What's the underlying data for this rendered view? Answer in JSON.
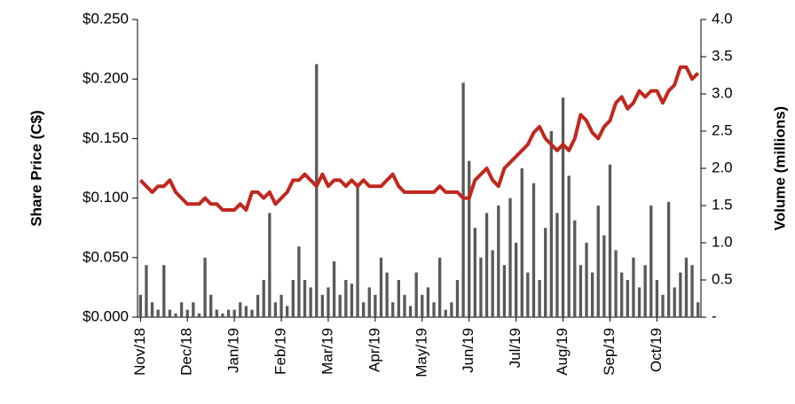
{
  "chart_data": {
    "type": "bar_line",
    "ylabel": "Share Price (C$)",
    "y2label": "Volume (millions)",
    "categories": [
      "Nov/18",
      null,
      null,
      null,
      null,
      null,
      null,
      null,
      "Dec/18",
      null,
      null,
      null,
      null,
      null,
      null,
      null,
      "Jan/19",
      null,
      null,
      null,
      null,
      null,
      null,
      null,
      "Feb/19",
      null,
      null,
      null,
      null,
      null,
      null,
      null,
      "Mar/19",
      null,
      null,
      null,
      null,
      null,
      null,
      null,
      "Apr/19",
      null,
      null,
      null,
      null,
      null,
      null,
      null,
      "May/19",
      null,
      null,
      null,
      null,
      null,
      null,
      null,
      "Jun/19",
      null,
      null,
      null,
      null,
      null,
      null,
      null,
      "Jul/19",
      null,
      null,
      null,
      null,
      null,
      null,
      null,
      "Aug/19",
      null,
      null,
      null,
      null,
      null,
      null,
      null,
      "Sep/19",
      null,
      null,
      null,
      null,
      null,
      null,
      null,
      "Oct/19",
      null,
      null,
      null,
      null,
      null,
      null,
      null
    ],
    "series": [
      {
        "name": "Volume",
        "kind": "bar",
        "axis": "y2",
        "color": "#595959",
        "values": [
          0.3,
          0.7,
          0.2,
          0.1,
          0.7,
          0.1,
          0.05,
          0.2,
          0.1,
          0.2,
          0.05,
          0.8,
          0.3,
          0.1,
          0.05,
          0.1,
          0.1,
          0.2,
          0.15,
          0.1,
          0.3,
          0.5,
          1.4,
          0.2,
          0.3,
          0.15,
          0.5,
          0.95,
          0.5,
          0.4,
          3.4,
          0.3,
          0.4,
          0.75,
          0.3,
          0.5,
          0.45,
          1.8,
          0.2,
          0.4,
          0.3,
          0.8,
          0.6,
          0.2,
          0.5,
          0.3,
          0.15,
          0.6,
          0.3,
          0.4,
          0.2,
          0.8,
          0.1,
          0.2,
          0.5,
          3.15,
          2.1,
          1.2,
          0.8,
          1.4,
          0.9,
          1.5,
          0.7,
          1.6,
          1.0,
          2.0,
          0.6,
          1.8,
          0.5,
          1.2,
          2.5,
          1.4,
          2.95,
          1.9,
          1.3,
          0.7,
          1.0,
          0.6,
          1.5,
          1.1,
          2.05,
          0.9,
          0.6,
          0.5,
          0.8,
          0.4,
          0.7,
          1.5,
          0.5,
          0.3,
          1.55,
          0.4,
          0.6,
          0.8,
          0.7,
          0.2
        ]
      },
      {
        "name": "Share Price",
        "kind": "line",
        "axis": "y",
        "color": "#c0281e",
        "values": [
          0.115,
          0.11,
          0.105,
          0.11,
          0.11,
          0.115,
          0.105,
          0.1,
          0.095,
          0.095,
          0.095,
          0.1,
          0.095,
          0.095,
          0.09,
          0.09,
          0.09,
          0.095,
          0.09,
          0.105,
          0.105,
          0.1,
          0.105,
          0.095,
          0.1,
          0.105,
          0.115,
          0.115,
          0.12,
          0.115,
          0.11,
          0.12,
          0.11,
          0.115,
          0.115,
          0.11,
          0.115,
          0.11,
          0.115,
          0.11,
          0.11,
          0.11,
          0.115,
          0.12,
          0.11,
          0.105,
          0.105,
          0.105,
          0.105,
          0.105,
          0.105,
          0.11,
          0.105,
          0.105,
          0.105,
          0.1,
          0.1,
          0.115,
          0.12,
          0.125,
          0.115,
          0.11,
          0.125,
          0.13,
          0.135,
          0.14,
          0.145,
          0.155,
          0.16,
          0.15,
          0.145,
          0.14,
          0.145,
          0.14,
          0.15,
          0.17,
          0.165,
          0.155,
          0.15,
          0.16,
          0.165,
          0.18,
          0.185,
          0.175,
          0.18,
          0.19,
          0.185,
          0.19,
          0.19,
          0.18,
          0.19,
          0.195,
          0.21,
          0.21,
          0.2,
          0.205
        ]
      }
    ],
    "ylim": [
      0,
      0.25
    ],
    "yticks": [
      {
        "value": 0,
        "label": "$0.000"
      },
      {
        "value": 0.05,
        "label": "$0.050"
      },
      {
        "value": 0.1,
        "label": "$0.100"
      },
      {
        "value": 0.15,
        "label": "$0.150"
      },
      {
        "value": 0.2,
        "label": "$0.200"
      },
      {
        "value": 0.25,
        "label": "$0.250"
      }
    ],
    "y2lim": [
      0,
      4
    ],
    "y2ticks": [
      {
        "value": 0,
        "label": "-"
      },
      0.5,
      {
        "value": 1,
        "label": "1.0"
      },
      1.5,
      {
        "value": 2,
        "label": "2.0"
      },
      2.5,
      {
        "value": 3,
        "label": "3.0"
      },
      3.5,
      {
        "value": 4,
        "label": "4.0"
      }
    ]
  }
}
